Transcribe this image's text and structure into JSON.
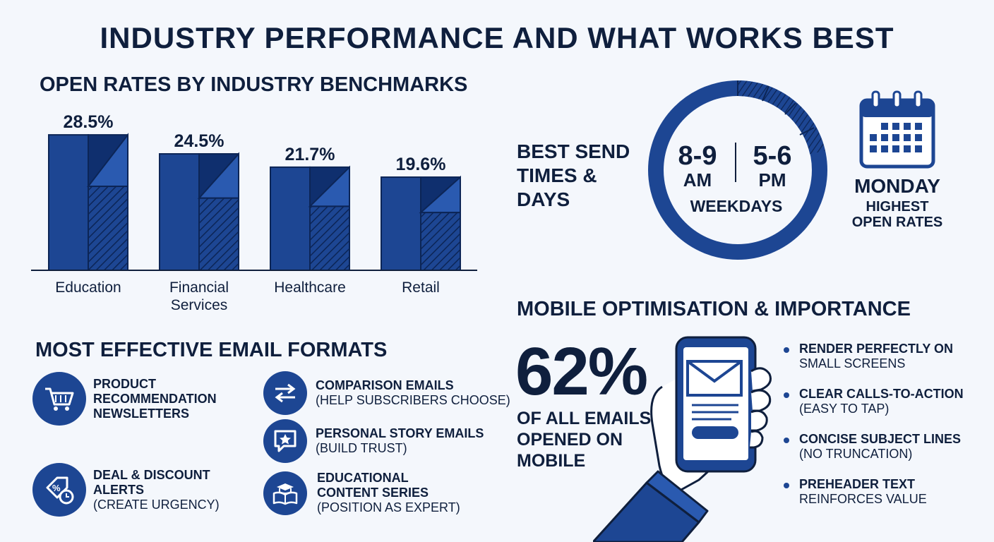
{
  "title": "INDUSTRY PERFORMANCE AND WHAT WORKS BEST",
  "colors": {
    "primary": "#1d4693",
    "dark": "#0f2f6e",
    "mid": "#2a5ab0",
    "text": "#0f1f3d",
    "background": "#f4f7fc"
  },
  "chart_data": {
    "type": "bar",
    "title": "OPEN RATES BY INDUSTRY BENCHMARKS",
    "categories": [
      "Education",
      "Financial\nServices",
      "Healthcare",
      "Retail"
    ],
    "values": [
      28.5,
      24.5,
      21.7,
      19.6
    ],
    "value_labels": [
      "28.5%",
      "24.5%",
      "21.7%",
      "19.6%"
    ],
    "unit": "%",
    "ylim": [
      0,
      30
    ],
    "xlabel": "",
    "ylabel": "",
    "grid": false,
    "legend": "none"
  },
  "formats": {
    "title": "MOST EFFECTIVE EMAIL FORMATS",
    "items": [
      {
        "title": "PRODUCT\nRECOMMENDATION\nNEWSLETTERS",
        "sub": "",
        "icon": "shopping-cart-icon"
      },
      {
        "title": "COMPARISON EMAILS",
        "sub": "(HELP SUBSCRIBERS CHOOSE)",
        "icon": "swap-arrows-icon"
      },
      {
        "title": "PERSONAL STORY EMAILS",
        "sub": "(BUILD TRUST)",
        "icon": "star-chat-icon"
      },
      {
        "title": "DEAL & DISCOUNT\nALERTS",
        "sub": "(CREATE URGENCY)",
        "icon": "discount-tag-clock-icon"
      },
      {
        "title": "EDUCATIONAL\nCONTENT SERIES",
        "sub": "(POSITION AS EXPERT)",
        "icon": "graduation-book-icon"
      }
    ]
  },
  "send_times": {
    "label": "BEST SEND\nTIMES &\nDAYS",
    "morning_time": "8-9",
    "morning_period": "AM",
    "evening_time": "5-6",
    "evening_period": "PM",
    "days": "WEEKDAYS",
    "best_day": "MONDAY",
    "best_day_note": "HIGHEST\nOPEN RATES",
    "icon": "calendar-icon"
  },
  "mobile": {
    "title": "MOBILE OPTIMISATION & IMPORTANCE",
    "stat": "62%",
    "stat_desc": "OF ALL EMAILS\nOPENED ON\nMOBILE",
    "icon": "hand-phone-email-icon",
    "bullets": [
      {
        "title": "RENDER PERFECTLY ON",
        "sub": "SMALL SCREENS"
      },
      {
        "title": "CLEAR CALLS-TO-ACTION",
        "sub": "(EASY TO TAP)"
      },
      {
        "title": "CONCISE SUBJECT LINES",
        "sub": "(NO TRUNCATION)"
      },
      {
        "title": "PREHEADER TEXT",
        "sub": "REINFORCES VALUE"
      }
    ]
  }
}
